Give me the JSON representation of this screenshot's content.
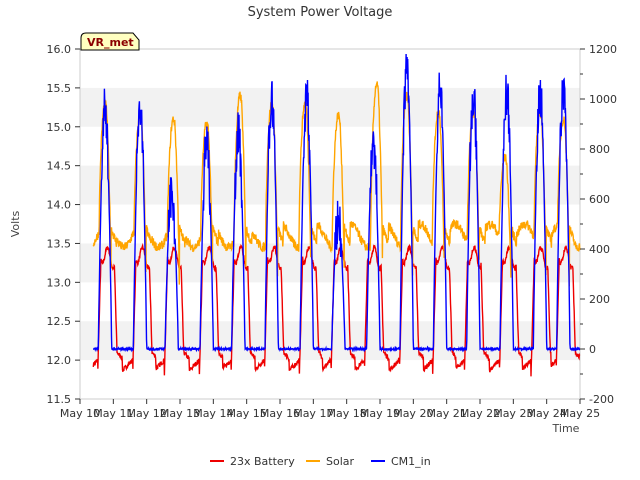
{
  "chart_data": {
    "type": "line",
    "title": "System Power Voltage",
    "xlabel": "Time",
    "ylabel": "Volts",
    "badge": "VR_met",
    "x_ticks": [
      "May 10",
      "May 11",
      "May 12",
      "May 13",
      "May 14",
      "May 15",
      "May 16",
      "May 17",
      "May 18",
      "May 19",
      "May 20",
      "May 21",
      "May 22",
      "May 23",
      "May 24",
      "May 25"
    ],
    "y_left_ticks": [
      "11.5",
      "12.0",
      "12.5",
      "13.0",
      "13.5",
      "14.0",
      "14.5",
      "15.0",
      "15.5",
      "16.0"
    ],
    "y_right_ticks": [
      "-200",
      "0",
      "200",
      "400",
      "600",
      "800",
      "1000",
      "1200"
    ],
    "ylim_left": [
      11.5,
      16.0
    ],
    "ylim_right": [
      -200,
      1200
    ],
    "xlim_days": [
      0,
      15
    ],
    "bands_left": [
      [
        12.0,
        12.5
      ],
      [
        13.0,
        13.5
      ],
      [
        14.0,
        14.5
      ],
      [
        15.0,
        15.5
      ]
    ],
    "series": [
      {
        "name": "23x Battery",
        "axis": "left",
        "color": "#ee0000",
        "peak_days": [
          0.75,
          1.8,
          2.75,
          3.8,
          4.75,
          5.75,
          6.8,
          7.75,
          8.75,
          9.8,
          10.8,
          11.75,
          12.8,
          13.75,
          14.5
        ],
        "night_min": 11.75,
        "plateau": 13.35
      },
      {
        "name": "Solar",
        "axis": "left",
        "color": "#ffa500",
        "peak_days": [
          0.75,
          1.8,
          2.8,
          3.8,
          4.8,
          5.75,
          6.75,
          7.75,
          8.9,
          9.8,
          10.75,
          11.8,
          12.75,
          13.8,
          14.5
        ],
        "peak_values": [
          15.3,
          15.15,
          15.1,
          15.05,
          15.4,
          15.3,
          15.3,
          15.15,
          15.55,
          15.4,
          15.2,
          15.2,
          14.6,
          15.2,
          15.1
        ],
        "night_base": 13.6
      },
      {
        "name": "CM1_in",
        "axis": "right",
        "color": "#0000ff",
        "peak_days": [
          0.75,
          1.8,
          2.75,
          3.8,
          4.75,
          5.75,
          6.8,
          7.75,
          8.8,
          9.8,
          10.8,
          11.8,
          12.8,
          13.8,
          14.5
        ],
        "peak_values": [
          960,
          960,
          620,
          820,
          860,
          1000,
          1010,
          520,
          820,
          1110,
          1030,
          1010,
          1030,
          1030,
          1040
        ],
        "base": 0
      }
    ],
    "legend_position": "bottom-center"
  }
}
